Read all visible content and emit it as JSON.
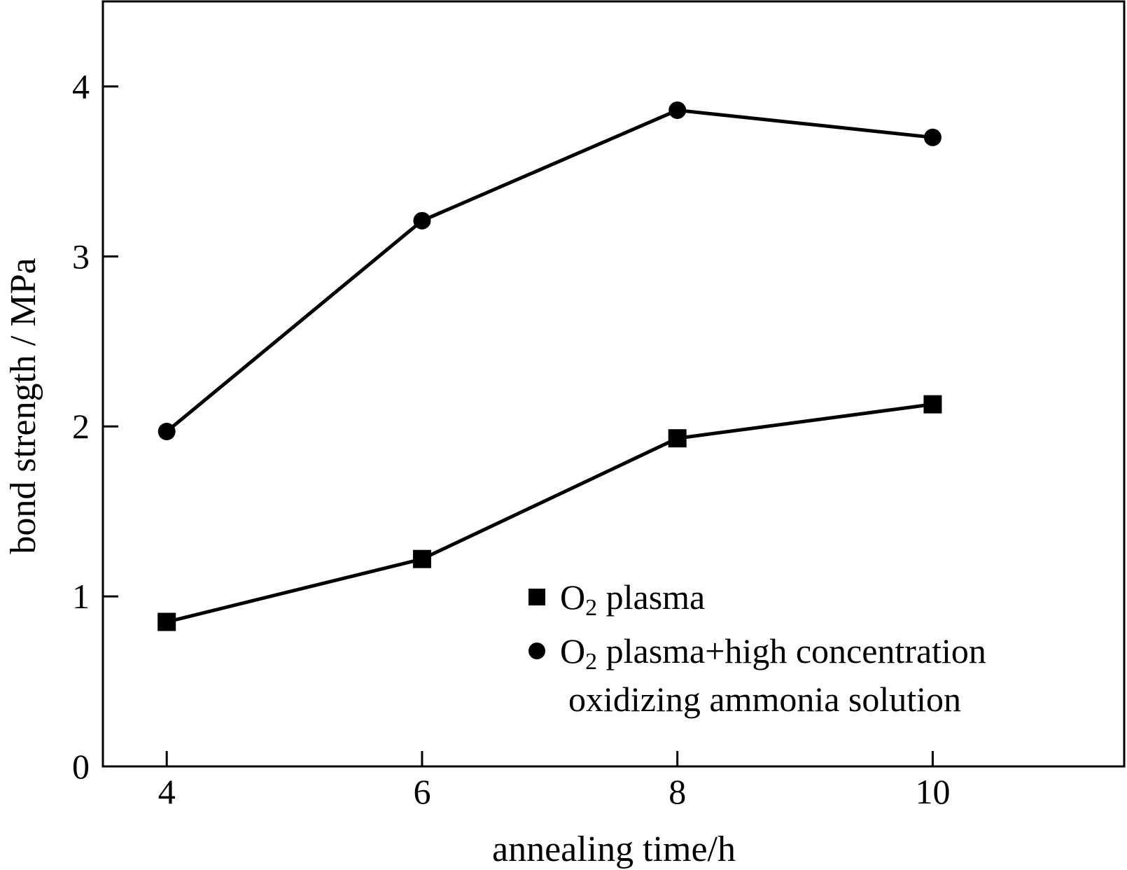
{
  "chart_data": {
    "type": "line",
    "title": "",
    "xlabel": "annealing time/h",
    "ylabel": "bond strength / MPa",
    "xlim": [
      3.5,
      11.5
    ],
    "ylim": [
      0,
      4.5
    ],
    "xticks": [
      4,
      6,
      8,
      10
    ],
    "xtick_labels": [
      "4",
      "6",
      "8",
      "10"
    ],
    "yticks": [
      0,
      1,
      2,
      3,
      4
    ],
    "ytick_labels": [
      "0",
      "1",
      "2",
      "3",
      "4"
    ],
    "grid": false,
    "legend_position": "bottom-right",
    "x": [
      4,
      6,
      8,
      10
    ],
    "series": [
      {
        "key": "o2_plasma",
        "marker": "square",
        "color": "#000000",
        "legend_parts": [
          "O",
          "2",
          " plasma"
        ],
        "values": [
          0.85,
          1.22,
          1.93,
          2.13
        ]
      },
      {
        "key": "o2_plasma_ammonia",
        "marker": "circle",
        "color": "#000000",
        "legend_parts": [
          "O",
          "2",
          " plasma+high concentration"
        ],
        "legend_line2": "oxidizing ammonia solution",
        "values": [
          1.97,
          3.21,
          3.86,
          3.7
        ]
      }
    ]
  }
}
